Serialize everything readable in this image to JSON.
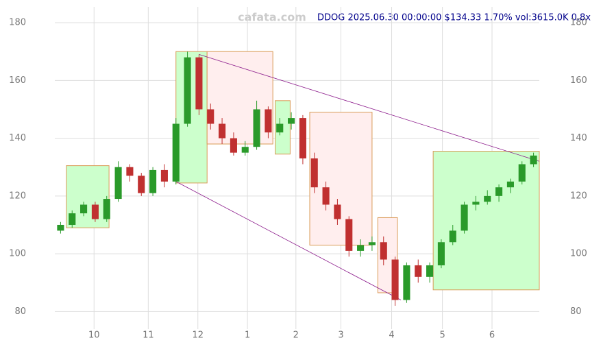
{
  "chart_data": {
    "type": "candlestick",
    "title": "DDOG 2025.06.30 00:00:00 $134.33 1.70% vol:3615.0K 0.8x",
    "watermark": "cafata.com",
    "x": [
      0,
      1,
      2,
      3,
      4,
      5,
      6,
      7,
      8,
      9,
      10,
      11,
      12,
      13,
      14,
      15,
      16,
      17,
      18,
      19,
      20,
      21,
      22,
      23,
      24,
      25,
      26,
      27,
      28,
      29,
      30,
      31,
      32,
      33,
      34,
      35,
      36,
      37,
      38,
      39,
      40,
      41
    ],
    "open": [
      108,
      110,
      114,
      117,
      112,
      119,
      130,
      127,
      121,
      129,
      125,
      145,
      168,
      150,
      145,
      140,
      135,
      137,
      150,
      142,
      145,
      147,
      133,
      123,
      117,
      112,
      101,
      103,
      104,
      98,
      84,
      96,
      92,
      96,
      104,
      108,
      117,
      118,
      120,
      123,
      125,
      131
    ],
    "close": [
      110,
      114,
      117,
      112,
      119,
      130,
      127,
      121,
      129,
      125,
      145,
      168,
      150,
      145,
      140,
      135,
      137,
      150,
      142,
      145,
      147,
      133,
      123,
      117,
      112,
      101,
      103,
      104,
      98,
      84,
      96,
      92,
      96,
      104,
      108,
      117,
      118,
      120,
      123,
      125,
      131,
      134
    ],
    "high": [
      111,
      115,
      118,
      118,
      120,
      132,
      131,
      128,
      130,
      131,
      147,
      170,
      169,
      152,
      147,
      142,
      139,
      153,
      151,
      147,
      149,
      148,
      135,
      125,
      119,
      113,
      105,
      106,
      106,
      99,
      97,
      98,
      97,
      105,
      110,
      118,
      120,
      122,
      124,
      126,
      132,
      135
    ],
    "low": [
      107,
      109,
      113,
      111,
      111,
      118,
      125,
      120,
      120,
      123,
      124,
      144,
      148,
      143,
      138,
      134,
      134,
      136,
      140,
      141,
      143,
      131,
      121,
      115,
      110,
      99,
      99,
      101,
      96,
      82,
      83,
      90,
      90,
      95,
      103,
      107,
      115,
      117,
      118,
      121,
      124,
      130
    ],
    "up_color": "#2a9a2a",
    "down_color": "#c03030",
    "boxes": [
      {
        "x": [
          0.5,
          4.2
        ],
        "y": [
          109,
          130.5
        ],
        "color": "#ccffcc"
      },
      {
        "x": [
          10,
          12.7
        ],
        "y": [
          124.5,
          170
        ],
        "color": "#ccffcc"
      },
      {
        "x": [
          12.7,
          18.4
        ],
        "y": [
          138,
          170
        ],
        "color": "#ffeeee"
      },
      {
        "x": [
          18.6,
          19.9
        ],
        "y": [
          134.5,
          153
        ],
        "color": "#ccffcc"
      },
      {
        "x": [
          21.6,
          27
        ],
        "y": [
          103,
          149
        ],
        "color": "#ffeeee"
      },
      {
        "x": [
          27.5,
          29.2
        ],
        "y": [
          86.5,
          112.5
        ],
        "color": "#ffeeee"
      },
      {
        "x": [
          32.3,
          41.5
        ],
        "y": [
          87.5,
          135.5
        ],
        "color": "#ccffcc"
      }
    ],
    "trend_lines": [
      {
        "x": [
          12,
          41.5
        ],
        "y": [
          169,
          132
        ],
        "color": "#8b1a8b"
      },
      {
        "x": [
          10,
          29.5
        ],
        "y": [
          125,
          84
        ],
        "color": "#8b1a8b"
      }
    ],
    "xlim": [
      -0.5,
      41.5
    ],
    "ylim": [
      77,
      185
    ],
    "xticks": [
      {
        "value": 2.9,
        "label": "10"
      },
      {
        "value": 7.6,
        "label": "11"
      },
      {
        "value": 11.9,
        "label": "12"
      },
      {
        "value": 16.2,
        "label": "1"
      },
      {
        "value": 20.4,
        "label": "2"
      },
      {
        "value": 24.3,
        "label": "3"
      },
      {
        "value": 28.7,
        "label": "4"
      },
      {
        "value": 33.1,
        "label": "5"
      },
      {
        "value": 37.4,
        "label": "6"
      }
    ],
    "yticks": [
      80,
      100,
      120,
      140,
      160,
      180
    ],
    "grid": true
  }
}
